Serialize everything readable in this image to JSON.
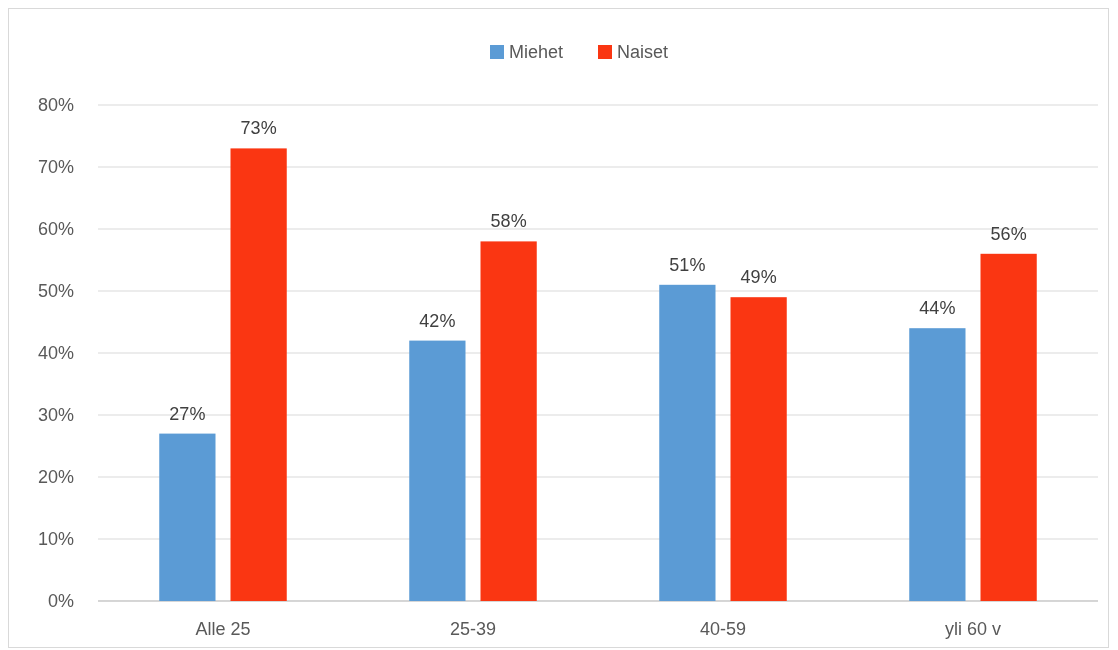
{
  "chart_data": {
    "type": "bar",
    "categories": [
      "Alle 25",
      "25-39",
      "40-59",
      "yli 60 v"
    ],
    "series": [
      {
        "name": "Miehet",
        "color": "#5b9bd5",
        "values": [
          27,
          42,
          51,
          44
        ],
        "value_labels": [
          "27%",
          "42%",
          "51%",
          "44%"
        ]
      },
      {
        "name": "Naiset",
        "color": "#fa3612",
        "values": [
          73,
          58,
          49,
          56
        ],
        "value_labels": [
          "73%",
          "58%",
          "49%",
          "56%"
        ]
      }
    ],
    "ylim": [
      0,
      80
    ],
    "yticks": [
      {
        "value": 0,
        "label": "0%"
      },
      {
        "value": 10,
        "label": "10%"
      },
      {
        "value": 20,
        "label": "20%"
      },
      {
        "value": 30,
        "label": "30%"
      },
      {
        "value": 40,
        "label": "40%"
      },
      {
        "value": 50,
        "label": "50%"
      },
      {
        "value": 60,
        "label": "60%"
      },
      {
        "value": 70,
        "label": "70%"
      },
      {
        "value": 80,
        "label": "80%"
      }
    ],
    "grid": "y",
    "legend": "top"
  }
}
